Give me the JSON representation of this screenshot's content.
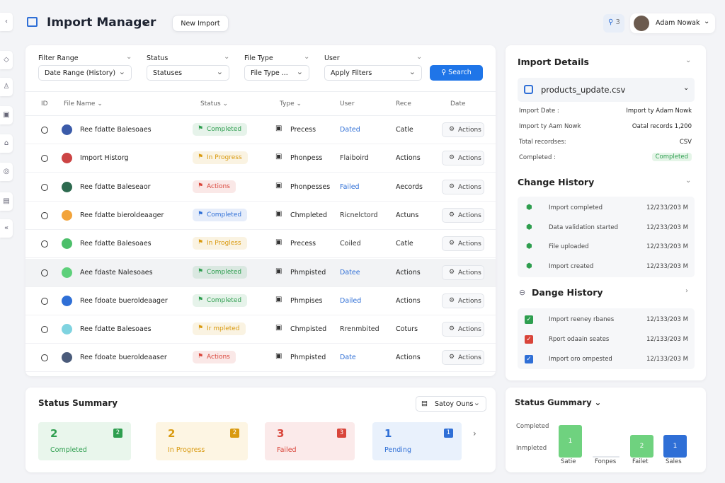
{
  "header": {
    "title": "Import Manager",
    "new_import": "New Import",
    "search_badge": "3",
    "user": "Adam Nowak"
  },
  "filters": [
    {
      "label": "Filter Range",
      "select": "Date Range (History)"
    },
    {
      "label": "Status",
      "select": "Statuses"
    },
    {
      "label": "File Type",
      "select": "File Type ..."
    },
    {
      "label": "User",
      "select": "Apply Filters"
    }
  ],
  "search_button": "Search",
  "table": {
    "columns": [
      "ID",
      "File Name",
      "Status",
      "Type",
      "User",
      "Rece",
      "Date"
    ],
    "rows": [
      {
        "name": "Ree fdatte Balesoaes",
        "status": "Completed",
        "status_color": "#2e9e4f",
        "type": "Precess",
        "user": "Dated",
        "user_color": "#2f6fd6",
        "rece": "Catle",
        "action": "Actions"
      },
      {
        "name": "Import Historg",
        "status": "In Progress",
        "status_color": "#d99a10",
        "type": "Phonpess",
        "user": "Flaiboird",
        "user_color": "#333333",
        "rece": "Actions",
        "action": "Actions"
      },
      {
        "name": "Ree fdatte Baleseaor",
        "status": "Actions",
        "status_color": "#d9453a",
        "type": "Phonpesses",
        "user": "Failed",
        "user_color": "#2f6fd6",
        "rece": "Aecords",
        "action": "Actions"
      },
      {
        "name": "Ree fdatte bieroldeaager",
        "status": "Completed",
        "status_color": "#2f6fd6",
        "type": "Chmpleted",
        "user": "Ricnelctord",
        "user_color": "#333333",
        "rece": "Actuns",
        "action": "Actions"
      },
      {
        "name": "Ree fdatte Balesoaes",
        "status": "In Progless",
        "status_color": "#d99a10",
        "type": "Precess",
        "user": "Coiled",
        "user_color": "#333333",
        "rece": "Catle",
        "action": "Actions"
      },
      {
        "name": "Aee fdaste Nalesoaes",
        "status": "Completed",
        "status_color": "#2e9e4f",
        "type": "Phmpisted",
        "user": "Datee",
        "user_color": "#2f6fd6",
        "rece": "Actions",
        "action": "Actions"
      },
      {
        "name": "Ree fdoate bueroldeaager",
        "status": "Completed",
        "status_color": "#2e9e4f",
        "type": "Phmpises",
        "user": "Dailed",
        "user_color": "#2f6fd6",
        "rece": "Actions",
        "action": "Actions"
      },
      {
        "name": "Ree fdatte Balesoaes",
        "status": "Ir mpleted",
        "status_color": "#d99a10",
        "type": "Chmpisted",
        "user": "Rrenmbited",
        "user_color": "#333333",
        "rece": "Coturs",
        "action": "Actions"
      },
      {
        "name": "Ree fdoate bueroldeaaser",
        "status": "Actions",
        "status_color": "#d9453a",
        "type": "Phmpisted",
        "user": "Date",
        "user_color": "#2f6fd6",
        "rece": "Actions",
        "action": "Actions"
      }
    ]
  },
  "details": {
    "title": "Import Details",
    "file": "products_update.csv",
    "rows": [
      [
        "Import Date :",
        "Import ty Adam Nowk"
      ],
      [
        "Import ty Aam Nowk",
        "Oatal records 1,200"
      ],
      [
        "Total recordses:",
        "CSV"
      ],
      [
        "Completed :",
        "Completed"
      ]
    ]
  },
  "change_history": {
    "title": "Change History",
    "items": [
      [
        "Import completed",
        "12/233/203 M"
      ],
      [
        "Data validation started",
        "12/233/203 M"
      ],
      [
        "File uploaded",
        "12/233/203 M"
      ],
      [
        "Import created",
        "12/233/203 M"
      ]
    ]
  },
  "dange_history": {
    "title": "Dange History",
    "items": [
      {
        "text": "Import reeney rbanes",
        "date": "12/133/203 M",
        "color": "#2e9e4f"
      },
      {
        "text": "Rport odaain seates",
        "date": "12/133/203 M",
        "color": "#d9453a"
      },
      {
        "text": "Import oro ompested",
        "date": "12/133/203 M",
        "color": "#2f6fd6"
      }
    ]
  },
  "status_summary": {
    "title": "Status Summary",
    "dropdown": "Satoy Ouns",
    "cards": [
      {
        "count": "2",
        "label": "Completed",
        "color": "#2e9e4f",
        "bg": "#e9f6ec"
      },
      {
        "count": "2",
        "label": "In Progress",
        "color": "#d99a10",
        "bg": "#fdf5e3"
      },
      {
        "count": "3",
        "label": "Failed",
        "color": "#d9453a",
        "bg": "#fbeaea"
      },
      {
        "count": "1",
        "label": "Pending",
        "color": "#2f6fd6",
        "bg": "#e9f1fc"
      }
    ]
  },
  "mini_chart": {
    "title": "Status Gummary",
    "y_labels": [
      "Completed",
      "Inmpleted"
    ],
    "bars": [
      {
        "label": "1",
        "name": "Satie",
        "color": "#6fd27f"
      },
      {
        "label": "",
        "name": "Fonpes",
        "color": "#e4e7ec"
      },
      {
        "label": "2",
        "name": "Failet",
        "color": "#6fd27f"
      },
      {
        "label": "1",
        "name": "Sales",
        "color": "#2f6fd6"
      }
    ]
  }
}
